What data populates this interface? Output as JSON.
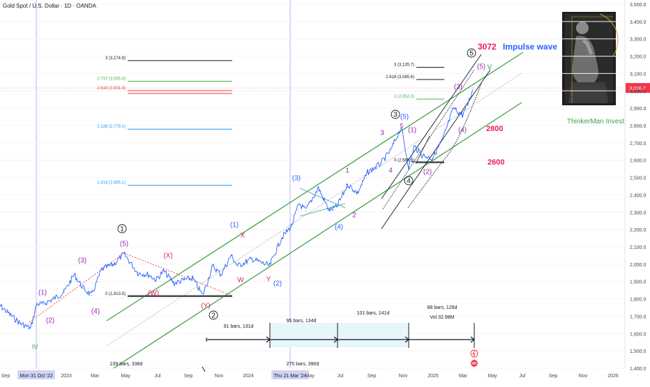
{
  "header": {
    "symbol_title": "Gold Spot / U.S. Dollar · 1D · OANDA"
  },
  "chart_data": {
    "type": "line",
    "title": "Gold Spot / U.S. Dollar · 1D · OANDA",
    "y_axis": {
      "ylim": [
        1400,
        3500
      ],
      "ticks": [
        "3,500.0",
        "3,400.0",
        "3,300.0",
        "3,200.0",
        "3,100.0",
        "3,000.0",
        "2,900.0",
        "2,800.0",
        "2,700.0",
        "2,600.0",
        "2,500.0",
        "2,400.0",
        "2,300.0",
        "2,200.0",
        "2,100.0",
        "2,000.0",
        "1,900.0",
        "1,800.0",
        "1,700.0",
        "1,600.0",
        "1,500.0",
        "1,400.0"
      ]
    },
    "x_axis": {
      "ticks": [
        "Sep",
        "Mon 31 Oct '22",
        "2023",
        "Mar",
        "May",
        "Jul",
        "Sep",
        "Nov",
        "2024",
        "Thu 21 Mar '24",
        "May",
        "Jul",
        "Sep",
        "Nov",
        "2025",
        "Mar",
        "May",
        "Jul",
        "Sep",
        "Nov",
        "2026"
      ]
    },
    "price_label": {
      "value": 3016.7,
      "text": "3,016.7",
      "color": "#f23645"
    },
    "series": [
      {
        "color": "#2962ff",
        "x": [
          "2022-08-25",
          "2022-09-20",
          "2022-10-10",
          "2022-10-31",
          "2022-11-12",
          "2022-11-25",
          "2022-12-15",
          "2023-01-05",
          "2023-01-25",
          "2023-02-12",
          "2023-02-28",
          "2023-03-20",
          "2023-04-13",
          "2023-05-03",
          "2023-05-30",
          "2023-06-20",
          "2023-07-05",
          "2023-07-20",
          "2023-08-10",
          "2023-08-30",
          "2023-09-15",
          "2023-10-05",
          "2023-10-25",
          "2023-11-10",
          "2023-11-30",
          "2023-12-13",
          "2024-01-10",
          "2024-02-14",
          "2024-03-08",
          "2024-03-28",
          "2024-04-12",
          "2024-04-25",
          "2024-05-20",
          "2024-06-10",
          "2024-06-25",
          "2024-07-17",
          "2024-08-05",
          "2024-08-25",
          "2024-09-20",
          "2024-10-10",
          "2024-10-30",
          "2024-11-14",
          "2024-11-25",
          "2024-12-10",
          "2024-12-30",
          "2025-01-20",
          "2025-02-10",
          "2025-02-28",
          "2025-03-10",
          "2025-03-21"
        ],
        "values": [
          1780,
          1710,
          1660,
          1630,
          1770,
          1770,
          1800,
          1840,
          1940,
          1860,
          1820,
          1970,
          2000,
          2060,
          1950,
          1940,
          1910,
          1960,
          1890,
          1910,
          1920,
          1820,
          1990,
          1940,
          2050,
          1990,
          2030,
          1990,
          2150,
          2220,
          2350,
          2310,
          2440,
          2310,
          2330,
          2460,
          2410,
          2530,
          2580,
          2660,
          2790,
          2560,
          2680,
          2630,
          2610,
          2720,
          2900,
          2860,
          2920,
          3016.7
        ]
      }
    ],
    "annotations": {
      "fib_levels": [
        {
          "text": "3 (3,174.8)",
          "value": 3174.8,
          "color": "#131722"
        },
        {
          "text": "2.737 (3,055.4)",
          "value": 3055.4,
          "color": "#4caf50"
        },
        {
          "text": "2.618 (3,001.4)",
          "value": 3001.4,
          "color": "#f23645"
        },
        {
          "text": "2.128 (2,779.1)",
          "value": 2779.1,
          "color": "#2196f3"
        },
        {
          "text": "1.414 (2,455.1)",
          "value": 2455.1,
          "color": "#2196f3"
        },
        {
          "text": "0 (1,813.5)",
          "value": 1813.5,
          "color": "#131722"
        },
        {
          "text": "3 (3,135.7)",
          "value": 3135.7,
          "color": "#131722"
        },
        {
          "text": "2.618 (3,065.6)",
          "value": 3065.6,
          "color": "#131722"
        },
        {
          "text": "2 (2,952.3)",
          "value": 2952.3,
          "color": "#4caf50"
        },
        {
          "text": "0 (2,585.3)",
          "value": 2585.3,
          "color": "#131722"
        }
      ],
      "wave_labels": [
        "IV",
        "(1)",
        "(2)",
        "(3)",
        "(4)",
        "(5)",
        "1",
        "(X)",
        "(W)",
        "(Y)",
        "2",
        "(1)",
        "X",
        "W",
        "Y",
        "(2)",
        "(3)",
        "1",
        "2",
        "(4)",
        "3",
        "4",
        "3",
        "(5)",
        "5",
        "(1)",
        "(2)",
        "4",
        "(3)",
        "(4)",
        "(5)",
        "V",
        "5"
      ],
      "targets": [
        {
          "text": "3072",
          "color": "#e91e63"
        },
        {
          "text": "Impulse wave",
          "color": "#2962ff"
        },
        {
          "text": "2800",
          "color": "#e91e63"
        },
        {
          "text": "2600",
          "color": "#e91e63"
        },
        {
          "text": "ThinkerMan Invest",
          "color": "#43a047"
        }
      ],
      "bar_counts": [
        "239 bars, 338d",
        "91 bars, 131d",
        "95 bars, 134d",
        "101 bars, 141d",
        "88 bars, 126d",
        "Vol 32.98M",
        "275 bars, 390d"
      ]
    }
  },
  "colors": {
    "channel": "#43a047",
    "wave_purple": "#9c27b0",
    "wave_blue": "#2962ff",
    "wave_red": "#e91e63",
    "price": "#2962ff",
    "price_line": "#f23645"
  }
}
